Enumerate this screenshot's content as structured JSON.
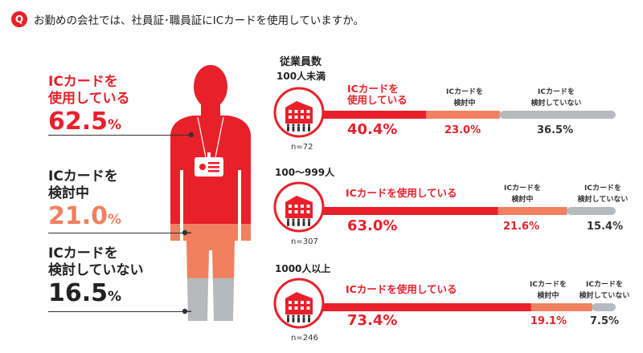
{
  "question": {
    "badge": "Q",
    "text": "お勤めの会社では、社員証･職員証にICカードを使用していますか。"
  },
  "colors": {
    "use": "#e8202a",
    "considering": "#f08060",
    "not_using": "#b7b9bc"
  },
  "categories": [
    {
      "label_lines": [
        "ICカードを",
        "使用している"
      ],
      "value": "62.5",
      "unit": "%",
      "color": "#e8202a"
    },
    {
      "label_lines": [
        "ICカードを",
        "検討中"
      ],
      "value": "21.0",
      "unit": "%",
      "color": "#f08060"
    },
    {
      "label_lines": [
        "ICカードを",
        "検討していない"
      ],
      "value": "16.5",
      "unit": "%",
      "color": "#222222"
    }
  ],
  "employee_title": "従業員数",
  "chart_data": {
    "type": "bar",
    "stacked": true,
    "orientation": "horizontal",
    "title": "従業員数",
    "xlim": [
      0,
      100
    ],
    "categories": [
      "100人未満",
      "100〜999人",
      "1000人以上"
    ],
    "n": [
      "n=72",
      "n=307",
      "n=246"
    ],
    "series": [
      {
        "name": "ICカードを使用している",
        "values": [
          40.4,
          63.0,
          73.4
        ]
      },
      {
        "name": "ICカードを検討中",
        "values": [
          23.0,
          21.6,
          19.1
        ]
      },
      {
        "name": "ICカードを検討していない",
        "values": [
          36.5,
          15.4,
          7.5
        ]
      }
    ],
    "value_labels": [
      [
        "40.4%",
        "23.0%",
        "36.5%"
      ],
      [
        "63.0%",
        "21.6%",
        "15.4%"
      ],
      [
        "73.4%",
        "19.1%",
        "7.5%"
      ]
    ],
    "segment_labels": [
      [
        [
          "ICカードを",
          "使用している"
        ],
        [
          "ICカードを",
          "検討中"
        ],
        [
          "ICカードを",
          "検討していない"
        ]
      ],
      [
        [
          "ICカードを使用している"
        ],
        [
          "ICカードを",
          "検討中"
        ],
        [
          "ICカードを",
          "検討していない"
        ]
      ],
      [
        [
          "ICカードを使用している"
        ],
        [
          "ICカードを",
          "検討中"
        ],
        [
          "ICカードを",
          "検討していない"
        ]
      ]
    ],
    "overall": {
      "values": [
        62.5,
        21.0,
        16.5
      ]
    }
  }
}
